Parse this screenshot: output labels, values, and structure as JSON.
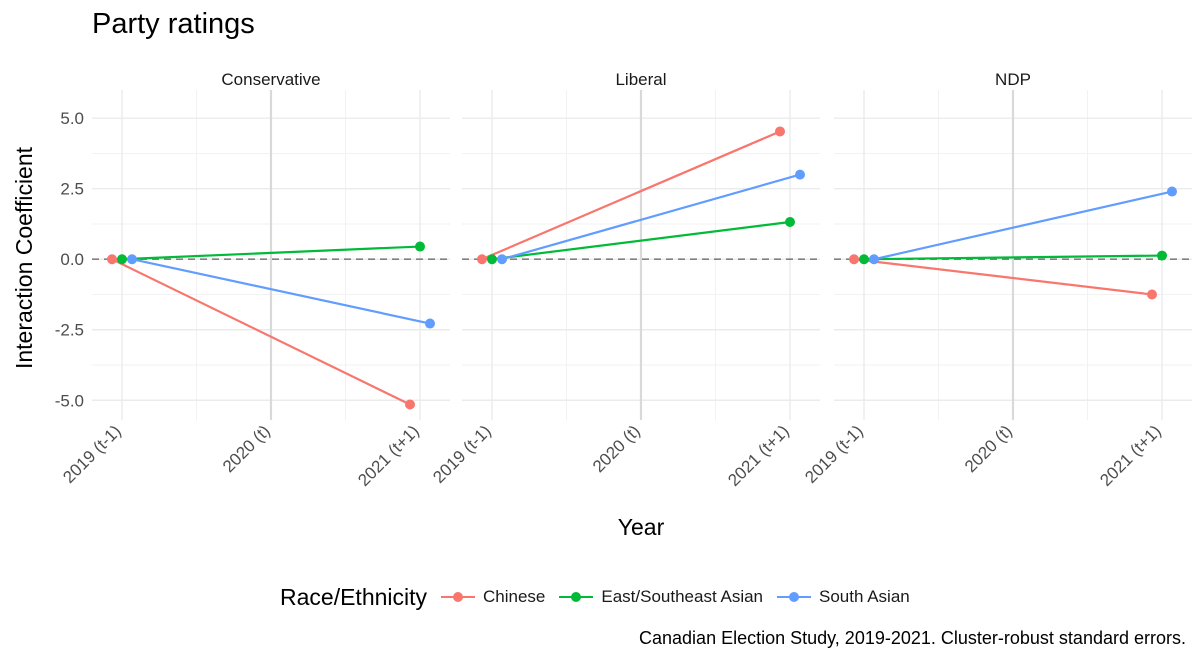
{
  "title": "Party ratings",
  "caption": "Canadian Election Study, 2019-2021. Cluster-robust standard errors.",
  "chart_data": {
    "type": "line",
    "title": "Party ratings",
    "xlabel": "Year",
    "ylabel": "Interaction Coefficient",
    "categories": [
      "2019 (t-1)",
      "2020 (t)",
      "2021 (t+1)"
    ],
    "ylim": [
      -5.7,
      6.0
    ],
    "yticks": [
      5.0,
      2.5,
      0.0,
      -2.5,
      -5.0
    ],
    "ytick_labels": [
      "5.0",
      "2.5",
      "0.0",
      "-2.5",
      "-5.0"
    ],
    "reference_line": 0,
    "grid": true,
    "legend_title": "Race/Ethnicity",
    "legend_position": "bottom",
    "panels": [
      {
        "name": "Conservative",
        "series": [
          {
            "name": "Chinese",
            "color": "#F8766D",
            "x": [
              "2019 (t-1)",
              "2021 (t+1)"
            ],
            "values": [
              0.0,
              -5.15
            ]
          },
          {
            "name": "East/Southeast Asian",
            "color": "#00BA38",
            "x": [
              "2019 (t-1)",
              "2021 (t+1)"
            ],
            "values": [
              0.0,
              0.45
            ]
          },
          {
            "name": "South Asian",
            "color": "#619CFF",
            "x": [
              "2019 (t-1)",
              "2021 (t+1)"
            ],
            "values": [
              0.0,
              -2.28
            ]
          }
        ]
      },
      {
        "name": "Liberal",
        "series": [
          {
            "name": "Chinese",
            "color": "#F8766D",
            "x": [
              "2019 (t-1)",
              "2021 (t+1)"
            ],
            "values": [
              0.0,
              4.53
            ]
          },
          {
            "name": "East/Southeast Asian",
            "color": "#00BA38",
            "x": [
              "2019 (t-1)",
              "2021 (t+1)"
            ],
            "values": [
              0.0,
              1.32
            ]
          },
          {
            "name": "South Asian",
            "color": "#619CFF",
            "x": [
              "2019 (t-1)",
              "2021 (t+1)"
            ],
            "values": [
              0.0,
              3.0
            ]
          }
        ]
      },
      {
        "name": "NDP",
        "series": [
          {
            "name": "Chinese",
            "color": "#F8766D",
            "x": [
              "2019 (t-1)",
              "2021 (t+1)"
            ],
            "values": [
              0.0,
              -1.25
            ]
          },
          {
            "name": "East/Southeast Asian",
            "color": "#00BA38",
            "x": [
              "2019 (t-1)",
              "2021 (t+1)"
            ],
            "values": [
              0.0,
              0.13
            ]
          },
          {
            "name": "South Asian",
            "color": "#619CFF",
            "x": [
              "2019 (t-1)",
              "2021 (t+1)"
            ],
            "values": [
              0.0,
              2.4
            ]
          }
        ]
      }
    ]
  },
  "legend": {
    "title": "Race/Ethnicity",
    "items": [
      {
        "label": "Chinese",
        "color": "#F8766D"
      },
      {
        "label": "East/Southeast Asian",
        "color": "#00BA38"
      },
      {
        "label": "South Asian",
        "color": "#619CFF"
      }
    ]
  }
}
